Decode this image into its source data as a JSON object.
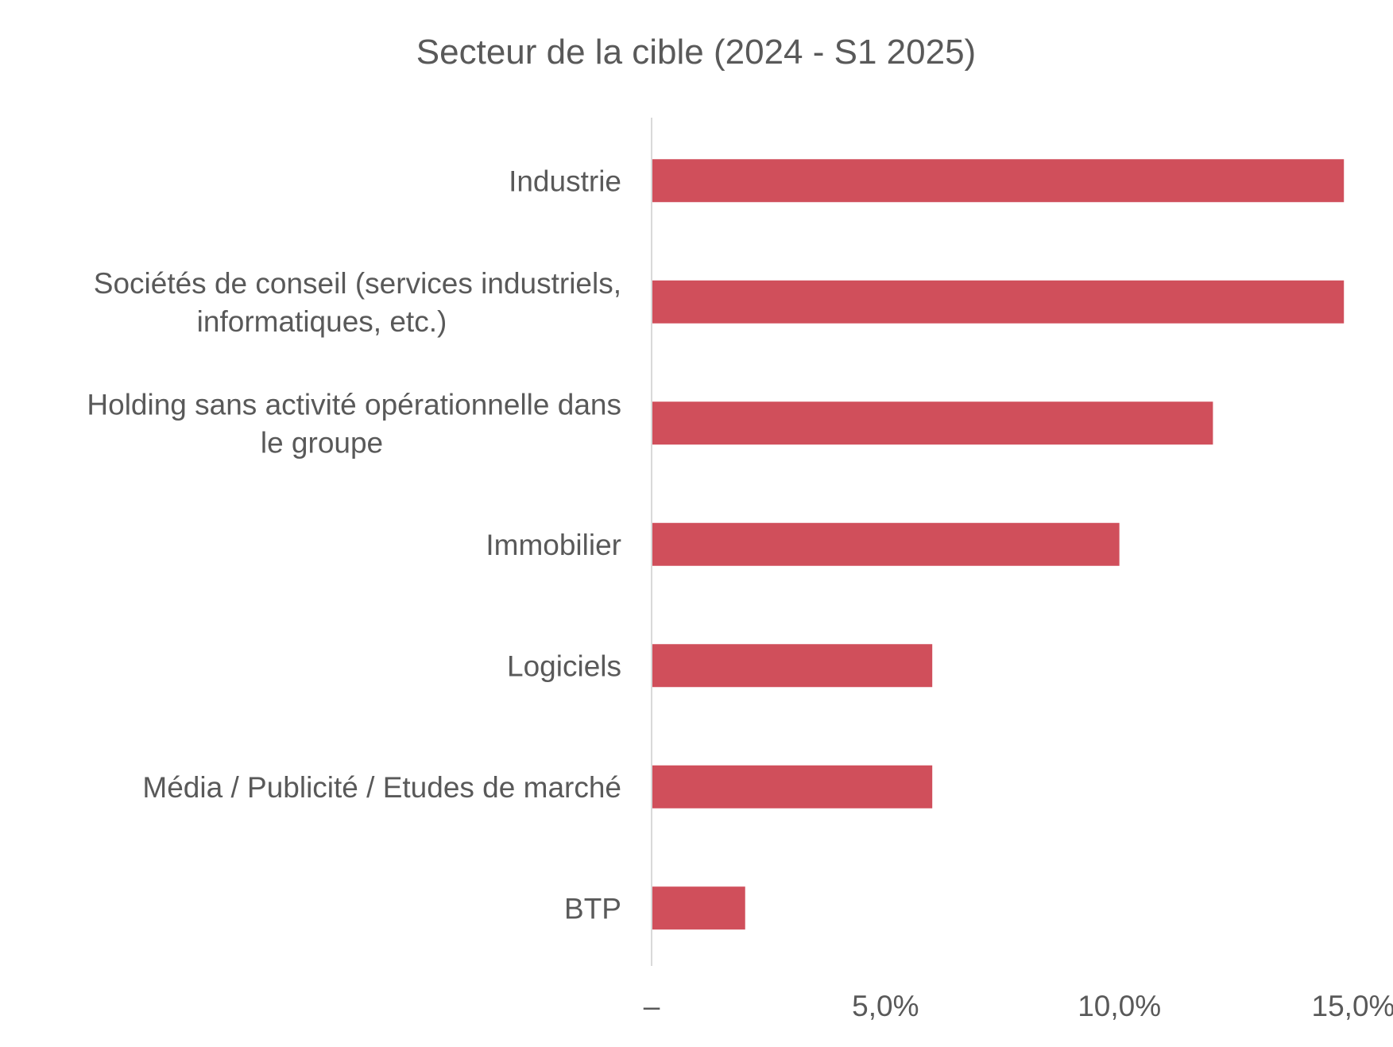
{
  "chart_data": {
    "type": "bar",
    "orientation": "horizontal",
    "title": "Secteur de la cible (2024 - S1 2025)",
    "xlabel": "",
    "ylabel": "",
    "categories": [
      [
        "Industrie"
      ],
      [
        "Sociétés de conseil (services industriels,",
        "informatiques, etc.)"
      ],
      [
        "Holding sans activité opérationnelle dans",
        "le groupe"
      ],
      [
        "Immobilier"
      ],
      [
        "Logiciels"
      ],
      [
        "Média / Publicité / Etudes de marché"
      ],
      [
        "BTP"
      ]
    ],
    "values": [
      14.8,
      14.8,
      12.0,
      10.0,
      6.0,
      6.0,
      2.0
    ],
    "xlim": [
      0,
      15
    ],
    "xticks": [
      0,
      5,
      10,
      15
    ],
    "xtick_labels": [
      "–",
      "5,0%",
      "10,0%",
      "15,0%"
    ],
    "grid": false,
    "legend": "none",
    "colors": {
      "bar": "#D04F5B",
      "text": "#595959",
      "axis": "#D9D9D9"
    }
  }
}
